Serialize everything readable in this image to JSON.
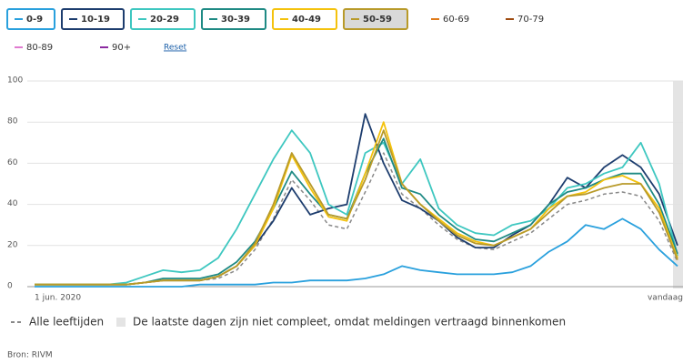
{
  "chart_data": {
    "type": "line",
    "x": [
      "1 jun. 2020",
      null,
      null,
      null,
      null,
      null,
      null,
      null,
      null,
      null,
      null,
      null,
      null,
      null,
      null,
      null,
      null,
      null,
      null,
      null,
      null,
      null,
      null,
      null,
      null,
      null,
      null,
      null,
      null,
      null,
      null,
      null,
      null,
      null,
      null,
      "vandaag"
    ],
    "ylim": [
      0,
      100
    ],
    "yticks": [
      0,
      20,
      40,
      60,
      80,
      100
    ],
    "grid": true,
    "reset_label": "Reset",
    "dashed_legend_label": "Alle leeftijden",
    "incomplete_note": "De laatste dagen zijn niet compleet, omdat meldingen vertraagd binnenkomen",
    "source": "Bron: RIVM",
    "series": [
      {
        "name": "0-9",
        "color": "#29a0dd",
        "visible": true,
        "values": [
          0,
          0,
          0,
          0,
          0,
          0,
          0,
          0,
          0,
          1,
          1,
          1,
          1,
          2,
          2,
          3,
          3,
          3,
          4,
          6,
          10,
          8,
          7,
          6,
          6,
          6,
          7,
          10,
          17,
          22,
          30,
          28,
          33,
          28,
          18,
          10
        ]
      },
      {
        "name": "10-19",
        "color": "#1d3d6e",
        "visible": true,
        "values": [
          1,
          1,
          1,
          1,
          1,
          1,
          2,
          3,
          3,
          3,
          5,
          10,
          20,
          32,
          48,
          35,
          38,
          40,
          84,
          60,
          42,
          38,
          32,
          24,
          19,
          19,
          25,
          30,
          40,
          53,
          48,
          58,
          64,
          58,
          45,
          20
        ]
      },
      {
        "name": "20-29",
        "color": "#3ec7c0",
        "visible": true,
        "values": [
          1,
          1,
          1,
          1,
          1,
          2,
          5,
          8,
          7,
          8,
          14,
          28,
          45,
          62,
          76,
          65,
          40,
          35,
          65,
          70,
          50,
          62,
          38,
          30,
          26,
          25,
          30,
          32,
          38,
          48,
          50,
          55,
          58,
          70,
          50,
          15
        ]
      },
      {
        "name": "30-39",
        "color": "#1f8a84",
        "visible": true,
        "values": [
          1,
          1,
          1,
          1,
          1,
          1,
          2,
          4,
          4,
          4,
          6,
          12,
          22,
          38,
          56,
          45,
          35,
          33,
          55,
          72,
          48,
          45,
          35,
          28,
          23,
          22,
          26,
          30,
          40,
          46,
          48,
          52,
          55,
          55,
          40,
          16
        ]
      },
      {
        "name": "40-49",
        "color": "#f4c20d",
        "visible": true,
        "values": [
          1,
          1,
          1,
          1,
          1,
          1,
          2,
          3,
          3,
          3,
          5,
          10,
          20,
          38,
          64,
          48,
          34,
          32,
          55,
          80,
          50,
          40,
          33,
          26,
          22,
          20,
          24,
          28,
          38,
          44,
          46,
          52,
          54,
          50,
          38,
          14
        ]
      },
      {
        "name": "50-59",
        "color": "#b89a2a",
        "visible": true,
        "highlighted": true,
        "values": [
          1,
          1,
          1,
          1,
          1,
          1,
          2,
          3,
          3,
          3,
          5,
          10,
          21,
          40,
          65,
          50,
          35,
          33,
          52,
          76,
          50,
          40,
          32,
          25,
          21,
          20,
          24,
          28,
          36,
          44,
          45,
          48,
          50,
          50,
          36,
          13
        ]
      },
      {
        "name": "60-69",
        "color": "#e07b1a",
        "visible": false
      },
      {
        "name": "70-79",
        "color": "#9e4b10",
        "visible": false
      },
      {
        "name": "80-89",
        "color": "#e07bd0",
        "visible": false
      },
      {
        "name": "90+",
        "color": "#8b2aa0",
        "visible": false
      },
      {
        "name": "Alle leeftijden",
        "color": "#888888",
        "dashed": true,
        "values": [
          1,
          1,
          1,
          1,
          1,
          1,
          2,
          3,
          3,
          3,
          4,
          8,
          18,
          33,
          52,
          42,
          30,
          28,
          46,
          65,
          45,
          38,
          30,
          23,
          19,
          18,
          22,
          26,
          33,
          40,
          42,
          45,
          46,
          44,
          32,
          12
        ]
      }
    ]
  }
}
